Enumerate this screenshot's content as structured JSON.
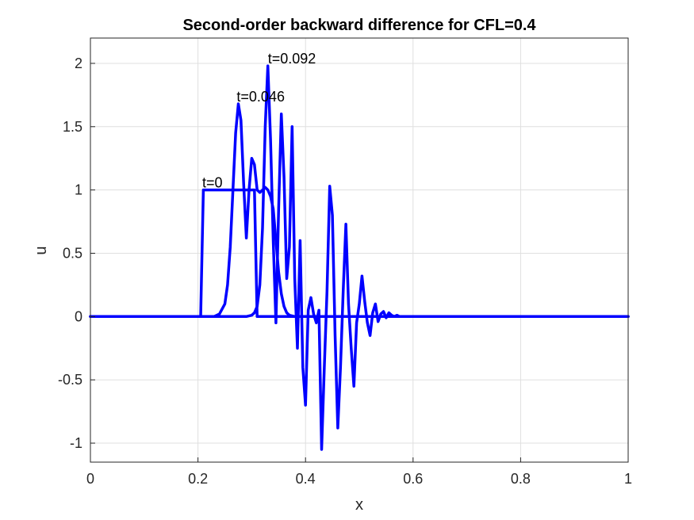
{
  "chart_data": {
    "type": "line",
    "title": "Second-order backward difference for CFL=0.4",
    "xlabel": "x",
    "ylabel": "u",
    "xlim": [
      0,
      1
    ],
    "ylim": [
      -1.15,
      2.2
    ],
    "xticks": [
      0,
      0.2,
      0.4,
      0.6,
      0.8,
      1
    ],
    "xtick_labels": [
      "0",
      "0.2",
      "0.4",
      "0.6",
      "0.8",
      "1"
    ],
    "yticks": [
      -1,
      -0.5,
      0,
      0.5,
      1,
      1.5,
      2
    ],
    "ytick_labels": [
      "-1",
      "-0.5",
      "0",
      "0.5",
      "1",
      "1.5",
      "2"
    ],
    "grid": true,
    "line_color": "#0000ff",
    "annotations": [
      {
        "text": "t=0",
        "x": 0.208,
        "y": 1.02
      },
      {
        "text": "t=0.046",
        "x": 0.272,
        "y": 1.7
      },
      {
        "text": "t=0.092",
        "x": 0.33,
        "y": 2.0
      }
    ],
    "series": [
      {
        "x": [
          0,
          0.2,
          0.205,
          0.21,
          0.212,
          0.3,
          0.305,
          0.31,
          0.312,
          1
        ],
        "y": [
          0,
          0,
          0,
          1,
          1,
          1,
          1,
          0,
          0,
          0
        ]
      },
      {
        "x": [
          0,
          0.23,
          0.24,
          0.25,
          0.255,
          0.26,
          0.265,
          0.27,
          0.275,
          0.28,
          0.285,
          0.29,
          0.295,
          0.3,
          0.305,
          0.31,
          0.315,
          0.32,
          0.325,
          0.33,
          0.335,
          0.34,
          0.345,
          0.35,
          0.355,
          0.36,
          0.365,
          0.37,
          0.38,
          0.39,
          1
        ],
        "y": [
          0,
          0,
          0.02,
          0.1,
          0.25,
          0.55,
          1.0,
          1.45,
          1.68,
          1.55,
          1.05,
          0.62,
          1.0,
          1.25,
          1.2,
          1.0,
          0.98,
          1.0,
          1.02,
          1.0,
          0.95,
          0.85,
          0.6,
          0.35,
          0.18,
          0.08,
          0.03,
          0.01,
          0,
          0,
          0
        ]
      },
      {
        "x": [
          0,
          0.29,
          0.3,
          0.305,
          0.31,
          0.315,
          0.32,
          0.325,
          0.33,
          0.335,
          0.34,
          0.345,
          0.35,
          0.355,
          0.36,
          0.365,
          0.37,
          0.375,
          0.38,
          0.385,
          0.39,
          0.395,
          0.4,
          0.405,
          0.41,
          0.415,
          0.42,
          0.425,
          0.43,
          0.435,
          0.44,
          0.445,
          0.45,
          0.455,
          0.46,
          0.465,
          0.47,
          0.475,
          0.48,
          0.485,
          0.49,
          0.495,
          0.5,
          0.505,
          0.51,
          0.515,
          0.52,
          0.525,
          0.53,
          0.535,
          0.54,
          0.545,
          0.55,
          0.555,
          0.56,
          0.565,
          0.57,
          0.575,
          0.58,
          1
        ],
        "y": [
          0,
          0,
          0.01,
          0.03,
          0.08,
          0.25,
          0.7,
          1.5,
          1.98,
          1.4,
          0.6,
          -0.05,
          0.85,
          1.6,
          1.1,
          0.3,
          0.55,
          1.5,
          0.3,
          -0.25,
          0.6,
          -0.4,
          -0.7,
          0.05,
          0.15,
          0.02,
          -0.05,
          0.05,
          -1.05,
          -0.4,
          0.2,
          1.03,
          0.8,
          -0.15,
          -0.88,
          -0.4,
          0.2,
          0.73,
          0.1,
          -0.25,
          -0.55,
          -0.05,
          0.1,
          0.32,
          0.12,
          -0.05,
          -0.15,
          0.03,
          0.1,
          -0.04,
          0.02,
          0.04,
          -0.01,
          0.03,
          0.01,
          0.0,
          0.01,
          0.0,
          0.0,
          0.0
        ]
      }
    ]
  }
}
